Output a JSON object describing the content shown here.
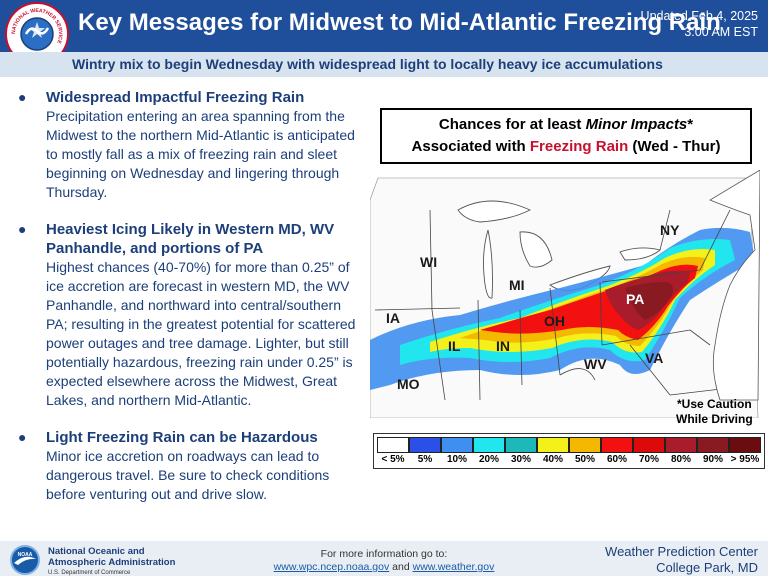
{
  "header": {
    "title": "Key Messages for Midwest to Mid-Atlantic Freezing Rain",
    "updated_line1": "Updated Feb 4, 2025",
    "updated_line2": "3:00 AM EST",
    "logo_text": "NATIONAL WEATHER SERVICE"
  },
  "subtitle": "Wintry mix to begin Wednesday with widespread light to locally heavy ice accumulations",
  "items": [
    {
      "title": "Widespread Impactful Freezing Rain",
      "body": "Precipitation entering an area spanning from the Midwest to the northern Mid-Atlantic is anticipated to mostly fall as a mix of freezing rain and sleet beginning on Wednesday and lingering through Thursday."
    },
    {
      "title": "Heaviest Icing Likely in Western MD, WV Panhandle, and portions of PA",
      "body": "Highest chances (40-70%) for more than 0.25” of ice accretion are forecast in western MD, the WV Panhandle, and northward into central/southern PA; resulting in the greatest potential for scattered power outages and tree damage. Lighter, but still potentially hazardous, freezing rain under 0.25” is expected elsewhere across the Midwest, Great Lakes, and northern Mid-Atlantic."
    },
    {
      "title": "Light Freezing Rain can be Hazardous",
      "body": "Minor ice accretion on roadways can lead to dangerous travel. Be sure to check conditions before venturing out and drive slow."
    }
  ],
  "bullet": "●",
  "chance_box": {
    "line1_pre": "Chances for at least ",
    "line1_em": "Minor Impacts",
    "line1_post": "*",
    "line2_pre": "Associated with ",
    "line2_red": "Freezing Rain",
    "line2_post": " (Wed - Thur)"
  },
  "map": {
    "states": [
      "WI",
      "MI",
      "NY",
      "IA",
      "OH",
      "PA",
      "IL",
      "IN",
      "WV",
      "VA",
      "MO"
    ]
  },
  "caution_line1": "*Use Caution",
  "caution_line2": "While Driving",
  "legend": {
    "labels": [
      "< 5%",
      "5%",
      "10%",
      "20%",
      "30%",
      "40%",
      "50%",
      "60%",
      "70%",
      "80%",
      "90%",
      "> 95%"
    ],
    "colors": [
      "#ffffff",
      "#2b50e8",
      "#3f8ff0",
      "#22e6ee",
      "#1fb8b8",
      "#f4f01a",
      "#f4b800",
      "#f21010",
      "#dc0a0a",
      "#a81c2c",
      "#8a1a22",
      "#6a0c10"
    ]
  },
  "footer": {
    "noaa_line1": "National Oceanic and",
    "noaa_line2": "Atmospheric Administration",
    "noaa_line3": "U.S. Department of Commerce",
    "noaa_logo_text": "NOAA",
    "more_info": "For more information go to:",
    "link1": "www.wpc.ncep.noaa.gov",
    "link_and": " and ",
    "link2": "www.weather.gov",
    "wpc_line1": "Weather Prediction Center",
    "wpc_line2": "College Park, MD"
  }
}
